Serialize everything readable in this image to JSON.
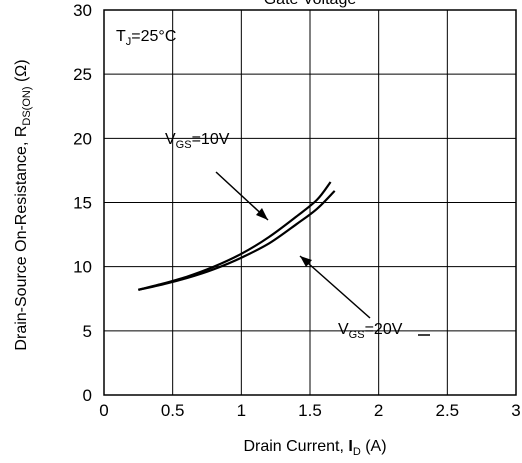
{
  "chart_data": {
    "type": "line",
    "title": "Gate Voltage",
    "xlabel": {
      "main": "Drain Current, ",
      "symbol": "I",
      "sub": "D",
      "unit": " (A)"
    },
    "ylabel": {
      "main": "Drain-Source On-Resistance, R",
      "sub": "DS(ON)",
      "unit": " (Ω)"
    },
    "xlim": [
      0,
      3
    ],
    "ylim": [
      0,
      30
    ],
    "xticks": [
      "0",
      "0.5",
      "1",
      "1.5",
      "2",
      "2.5",
      "3"
    ],
    "yticks": [
      "0",
      "5",
      "10",
      "15",
      "20",
      "25",
      "30"
    ],
    "grid": true,
    "annotation_tj": {
      "pre": "T",
      "sub": "J",
      "post": "=25°C"
    },
    "series": [
      {
        "name": "VGS=10V",
        "label": {
          "pre": "V",
          "sub": "GS",
          "post": "=10V"
        },
        "x": [
          0.25,
          0.4,
          0.6,
          0.8,
          1.0,
          1.2,
          1.4,
          1.55,
          1.65
        ],
        "y": [
          8.2,
          8.6,
          9.2,
          10.0,
          11.0,
          12.3,
          13.9,
          15.2,
          16.6
        ]
      },
      {
        "name": "VGS=20V",
        "label": {
          "pre": "V",
          "sub": "GS",
          "post": "=20V"
        },
        "x": [
          0.25,
          0.4,
          0.6,
          0.8,
          1.0,
          1.2,
          1.4,
          1.55,
          1.68
        ],
        "y": [
          8.2,
          8.55,
          9.1,
          9.8,
          10.7,
          11.8,
          13.3,
          14.5,
          15.9
        ]
      }
    ]
  }
}
